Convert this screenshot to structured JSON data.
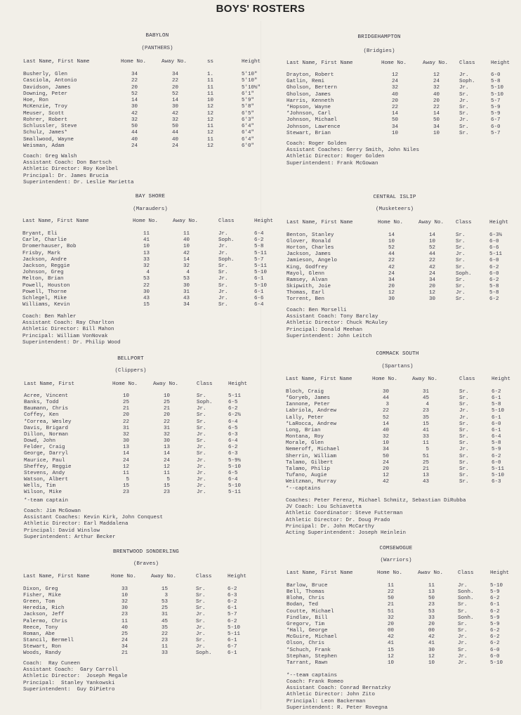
{
  "title": "BOYS' ROSTERS",
  "schools": [
    {
      "name": "BABYLON",
      "mascot": "(PANTHERS)",
      "headers": [
        "Last Name, First Name",
        "Home No.",
        "Away No.",
        "ss",
        "Height"
      ],
      "players": [
        [
          "Busherly, Glen",
          "34",
          "34",
          "1.",
          "5'10\""
        ],
        [
          "Casciola, Antonio",
          "22",
          "22",
          "11",
          "5'10\""
        ],
        [
          "Davidson, James",
          "20",
          "20",
          "11",
          "5'10½\""
        ],
        [
          "Downing, Peter",
          "52",
          "52",
          "11",
          "6'1\""
        ],
        [
          "Hoe, Ron",
          "14",
          "14",
          "10",
          "5'9\""
        ],
        [
          "McKenzie, Troy",
          "30",
          "30",
          "12",
          "5'8\""
        ],
        [
          "Meuser, Scott",
          "42",
          "42",
          "12",
          "6'5\""
        ],
        [
          "Rohrer, Robert",
          "32",
          "32",
          "12",
          "6'3\""
        ],
        [
          "Schlussler, Steve",
          "50",
          "50",
          "11",
          "6'4\""
        ],
        [
          "Schulz, James*",
          "44",
          "44",
          "12",
          "6'4\""
        ],
        [
          "Smallwood, Wayne",
          "40",
          "40",
          "11",
          "6'4\""
        ],
        [
          "Weisman, Adam",
          "24",
          "24",
          "12",
          "6'0\""
        ]
      ],
      "note": "",
      "staff": [
        "Coach: Greg Walsh",
        "Assistant Coach: Don Bartsch",
        "Athletic Director: Roy Koelbel",
        "Principal: Dr. James Brucia",
        "Superintendent: Dr. Leslie Marietta"
      ]
    },
    {
      "name": "BRIDGEHAMPTON",
      "mascot": "(Bridgies)",
      "headers": [
        "Last Name, First Name",
        "Home No.",
        "Away No.",
        "Class",
        "Height"
      ],
      "players": [
        [
          "Drayton, Robert",
          "12",
          "12",
          "Jr.",
          "6-0"
        ],
        [
          "Gatlin, Remi",
          "24",
          "24",
          "Soph.",
          "5-8"
        ],
        [
          "Gholson, Bertern",
          "32",
          "32",
          "Jr.",
          "5-10"
        ],
        [
          "Gholson, James",
          "40",
          "40",
          "Sr.",
          "5-10"
        ],
        [
          "Harris, Kenneth",
          "20",
          "20",
          "Jr.",
          "5-7"
        ],
        [
          "*Hopson, Wayne",
          "22",
          "22",
          "Sr.",
          "5-9"
        ],
        [
          "*Johnson, Carl",
          "14",
          "14",
          "Sr.",
          "5-9"
        ],
        [
          "Johnson, Michael",
          "50",
          "50",
          "Jr.",
          "6-7"
        ],
        [
          "Johnson, Lawrence",
          "34",
          "34",
          "Sr.",
          "6-0"
        ],
        [
          "Stewart, Brian",
          "10",
          "10",
          "Sr.",
          "5-7"
        ]
      ],
      "note": "",
      "staff": [
        "Coach: Roger Golden",
        "Assistant Coaches: Gerry Smith, John Niles",
        "Athletic Director: Roger Golden",
        "Superintendent: Frank McGowan"
      ]
    },
    {
      "name": "BAY SHORE",
      "mascot": "(Marauders)",
      "headers": [
        "Last Name, First Name",
        "Home No.",
        "Away No.",
        "Class",
        "Height"
      ],
      "players": [
        [
          "Bryant, Eli",
          "11",
          "11",
          "Jr.",
          "6-4"
        ],
        [
          "Carle, Charlie",
          "41",
          "40",
          "Soph.",
          "6-2"
        ],
        [
          "Dromerhauser, Bob",
          "10",
          "10",
          "Jr.",
          "5-8"
        ],
        [
          "Frisby, Mark",
          "13",
          "42",
          "Jr.",
          "5-11"
        ],
        [
          "Jackson, Andre",
          "33",
          "14",
          "Soph.",
          "5-7"
        ],
        [
          "Jackson, Reggie",
          "32",
          "32",
          "Sr.",
          "5-11"
        ],
        [
          "Johnson, Greg",
          "4",
          "4",
          "Sr.",
          "5-10"
        ],
        [
          "Melton, Brian",
          "53",
          "53",
          "Jr.",
          "6-1"
        ],
        [
          "Powell, Houston",
          "22",
          "30",
          "Sr.",
          "5-10"
        ],
        [
          "Powell, Thorne",
          "30",
          "31",
          "Jr.",
          "6-1"
        ],
        [
          "Schlegel, Mike",
          "43",
          "43",
          "Jr.",
          "6-6"
        ],
        [
          "Williams, Kevin",
          "15",
          "34",
          "Sr.",
          "6-4"
        ]
      ],
      "note": "",
      "staff": [
        "Coach: Ben Mahler",
        "Assistant Coach: Ray Charlton",
        "Athletic Director: Bill Mahon",
        "Principal: William VonNovak",
        "Superintendent: Dr. Philip Wood"
      ]
    },
    {
      "name": "CENTRAL ISLIP",
      "mascot": "(Musketeers)",
      "headers": [
        "Last Name, First Name",
        "Home No.",
        "Away No.",
        "Class",
        "Height"
      ],
      "players": [
        [
          "Benton, Stanley",
          "14",
          "14",
          "Sr.",
          "6-3½"
        ],
        [
          "Glover, Ronald",
          "10",
          "10",
          "Sr.",
          "6-0"
        ],
        [
          "Horton, Charles",
          "52",
          "52",
          "Sr.",
          "6-6"
        ],
        [
          "Jackson, James",
          "44",
          "44",
          "Jr.",
          "5-11"
        ],
        [
          "Jamieson, Angelo",
          "22",
          "22",
          "Sr.",
          "6-0"
        ],
        [
          "King, Godfrey",
          "42",
          "42",
          "Sr.",
          "6-2"
        ],
        [
          "Mayol, Glenn",
          "24",
          "24",
          "Soph.",
          "6-0"
        ],
        [
          "Ramsey, Alvan",
          "34",
          "34",
          "Sr.",
          "6-2"
        ],
        [
          "Skipwith, Joie",
          "20",
          "20",
          "Sr.",
          "5-8"
        ],
        [
          "Thomas, Earl",
          "12",
          "12",
          "Jr.",
          "5-8"
        ],
        [
          "Torrent, Ben",
          "30",
          "30",
          "Sr.",
          "6-2"
        ]
      ],
      "note": "",
      "staff": [
        "Coach: Ben Morselli",
        "Assistant Coach: Tony Barclay",
        "Athletic Director: Chuck McAuley",
        "Principal: Donald Meehan",
        "Superintendent: John Leitch"
      ]
    },
    {
      "name": "BELLPORT",
      "mascot": "(Clippers)",
      "headers": [
        "Last Name, First",
        "Home No.",
        "Away No.",
        "Class",
        "Height"
      ],
      "players": [
        [
          "Acree, Vincent",
          "10",
          "10",
          "Sr.",
          "5-11"
        ],
        [
          "Banks, Todd",
          "25",
          "25",
          "Soph.",
          "6-5"
        ],
        [
          "Baumann, Chris",
          "21",
          "21",
          "Jr.",
          "6-2"
        ],
        [
          "Coffey, Ken",
          "20",
          "20",
          "Sr.",
          "6-2½"
        ],
        [
          "*Correa, Wesley",
          "22",
          "22",
          "Sr.",
          "6-4"
        ],
        [
          "Davis, Brigard",
          "31",
          "31",
          "Sr.",
          "6-5"
        ],
        [
          "Dillon, Norman",
          "32",
          "32",
          "Jr.",
          "6-3"
        ],
        [
          "Dowd, John",
          "30",
          "30",
          "Sr.",
          "6-4"
        ],
        [
          "Felder, Craig",
          "13",
          "13",
          "Jr.",
          "6-2"
        ],
        [
          "George, Darryl",
          "14",
          "14",
          "Sr.",
          "6-3"
        ],
        [
          "Maurice, Paul",
          "24",
          "24",
          "Jr.",
          "5-9½"
        ],
        [
          "Sheffey, Reggie",
          "12",
          "12",
          "Jr.",
          "5-10"
        ],
        [
          "Stevens, Andy",
          "11",
          "11",
          "Jr.",
          "6-5"
        ],
        [
          "Watson, Albert",
          "5",
          "5",
          "Jr.",
          "6-4"
        ],
        [
          "Wells, Tim",
          "15",
          "15",
          "Jr.",
          "5-10"
        ],
        [
          "Wilson, Mike",
          "23",
          "23",
          "Jr.",
          "5-11"
        ]
      ],
      "note": "*-team captain",
      "staff": [
        "Coach: Jim McGowan",
        "Assistant Coaches: Kevin Kirk, John Conquest",
        "Athletic Director: Earl Maddalena",
        "Principal: David Winslow",
        "Superintendent: Arthur Becker"
      ]
    },
    {
      "name": "COMMACK SOUTH",
      "mascot": "(Spartans)",
      "headers": [
        "Last Name, First Name",
        "Home No.",
        "Away No.",
        "Class",
        "Height"
      ],
      "players": [
        [
          "Bloch, Craig",
          "30",
          "31",
          "Sr.",
          "6-2"
        ],
        [
          "*Goryeb, James",
          "44",
          "45",
          "Sr.",
          "6-1"
        ],
        [
          "Iannone, Peter",
          "3",
          "4",
          "Sr.",
          "5-8"
        ],
        [
          "Labriola, Andrew",
          "22",
          "23",
          "Jr.",
          "5-10"
        ],
        [
          "Lally, Peter",
          "52",
          "35",
          "Jr.",
          "6-1"
        ],
        [
          "*LaRocca, Andrew",
          "14",
          "15",
          "Sr.",
          "6-0"
        ],
        [
          "Long, Brian",
          "40",
          "41",
          "Sr.",
          "6-1"
        ],
        [
          "Montana, Roy",
          "32",
          "33",
          "Sr.",
          "6-4"
        ],
        [
          "Morale, Glen",
          "10",
          "11",
          "Sr.",
          "5-8"
        ],
        [
          "Nemeroff, Michael",
          "34",
          "5",
          "Jr.",
          "5-9"
        ],
        [
          "Sherrin, William",
          "50",
          "51",
          "Sr.",
          "6-2"
        ],
        [
          "Talamo, Gilbert",
          "24",
          "25",
          "Sr.",
          "6-0"
        ],
        [
          "Talamo, Philip",
          "20",
          "21",
          "Sr.",
          "5-11"
        ],
        [
          "Tufano, Augie",
          "12",
          "13",
          "Sr.",
          "5-10"
        ],
        [
          "Weitzman, Murray",
          "42",
          "43",
          "Sr.",
          "6-3"
        ]
      ],
      "note": "*--captains",
      "staff": [
        "Coaches: Peter Ferenz, Michael Schmitz, Sebastian DiRubba",
        "JV Coach: Lou Schiavetta",
        "Athletic Coordinator: Steve Futterman",
        "Athletic Director: Dr. Doug Prado",
        "Principal: Dr. John McCarthy",
        "Acting Superintendent: Joseph Heinlein"
      ]
    },
    {
      "name": "BRENTWOOD SONDERLING",
      "mascot": "(Braves)",
      "headers": [
        "Last Name, First Name",
        "Home No.",
        "Away No.",
        "Class",
        "Height"
      ],
      "players": [
        [
          "Dixon, Greg",
          "33",
          "15",
          "Sr.",
          "6-2"
        ],
        [
          "Fisher, Mike",
          "10",
          "3",
          "Sr.",
          "6-3"
        ],
        [
          "Green, Tom",
          "32",
          "53",
          "Sr.",
          "6-2"
        ],
        [
          "Heredia, Rich",
          "30",
          "25",
          "Sr.",
          "6-1"
        ],
        [
          "Jackson, Jeff",
          "23",
          "31",
          "Jr.",
          "5-7"
        ],
        [
          "Palermo, Chris",
          "11",
          "45",
          "Sr.",
          "6-2"
        ],
        [
          "Reece, Tony",
          "40",
          "35",
          "Jr.",
          "5-10"
        ],
        [
          "Roman, Abe",
          "25",
          "22",
          "Jr.",
          "5-11"
        ],
        [
          "Stancil, Bermell",
          "24",
          "23",
          "Sr.",
          "6-1"
        ],
        [
          "Stewart, Ron",
          "34",
          "11",
          "Jr.",
          "6-7"
        ],
        [
          "Woods, Randy",
          "21",
          "33",
          "Soph.",
          "6-1"
        ]
      ],
      "note": "",
      "staff": [
        "Coach:  Ray Cuneen",
        "Assistant Coach:  Gary Carroll",
        "Athletic Director:  Joseph Megale",
        "Principal:  Stanley Yankowski",
        "Superintendent:  Guy DiPietro"
      ]
    },
    {
      "name": "COMSEWOGUE",
      "mascot": "(Warriors)",
      "headers": [
        "Last Name, First Name",
        "Home No.",
        "Awav No.",
        "Class",
        "Height"
      ],
      "players": [
        [
          "Barlow, Bruce",
          "11",
          "11",
          "Jr.",
          "5-10"
        ],
        [
          "Bell, Thomas",
          "22",
          "13",
          "Sonh.",
          "5-9"
        ],
        [
          "Blohm, Chris",
          "50",
          "50",
          "Sonh.",
          "6-2"
        ],
        [
          "Bodan, Ted",
          "21",
          "23",
          "Sr.",
          "6-1"
        ],
        [
          "Coutte, Michael",
          "51",
          "53",
          "Sr.",
          "6-2"
        ],
        [
          "Findlav, Bill",
          "32",
          "33",
          "Sonh.",
          "5-9"
        ],
        [
          "Gregorv, Tim",
          "20",
          "20",
          "Sr.",
          "5-9"
        ],
        [
          "*Hall, George",
          "00",
          "00",
          "Sr.",
          "6-2"
        ],
        [
          "McGuire, Michael",
          "42",
          "42",
          "Jr.",
          "6-2"
        ],
        [
          "Olson, Chris",
          "41",
          "41",
          "Jr.",
          "6-2"
        ],
        [
          "*Schuch, Frank",
          "15",
          "30",
          "Sr.",
          "6-0"
        ],
        [
          "Stephan, Stephen",
          "12",
          "12",
          "Jr.",
          "6-0"
        ],
        [
          "Tarrant, Rawn",
          "10",
          "10",
          "Jr.",
          "5-10"
        ]
      ],
      "note": "*--team captains",
      "staff": [
        "Coach: Frank Romeo",
        "Assistant Coach: Conrad Bernatzky",
        "Athletic Director: John Zito",
        "Principal: Leon Backerman",
        "Superintendent: R. Peter Rovegna"
      ]
    }
  ]
}
